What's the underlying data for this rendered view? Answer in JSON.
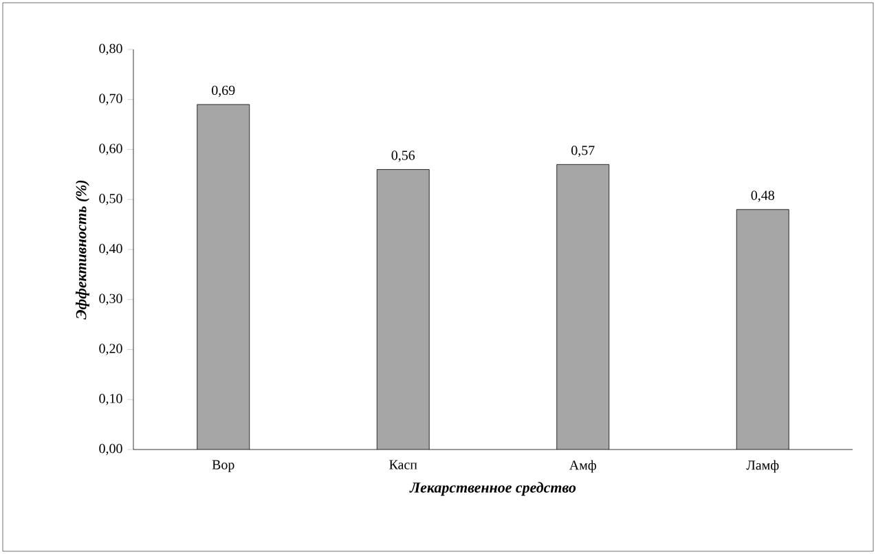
{
  "chart_data": {
    "type": "bar",
    "xlabel": "Лекарственное средство",
    "ylabel": "Эффективность (%)",
    "categories": [
      "Вор",
      "Касп",
      "Амф",
      "Ламф"
    ],
    "values": [
      0.69,
      0.56,
      0.57,
      0.48
    ],
    "value_labels": [
      "0,69",
      "0,56",
      "0,57",
      "0,48"
    ],
    "color": "#a6a6a6",
    "ylim": [
      0,
      0.8
    ],
    "yticks": [
      {
        "value": 0,
        "label": "0,00"
      },
      {
        "value": 0.1,
        "label": "0,10"
      },
      {
        "value": 0.2,
        "label": "0,20"
      },
      {
        "value": 0.3,
        "label": "0,30"
      },
      {
        "value": 0.4,
        "label": "0,40"
      },
      {
        "value": 0.5,
        "label": "0,50"
      },
      {
        "value": 0.6,
        "label": "0,60"
      },
      {
        "value": 0.7,
        "label": "0,70"
      },
      {
        "value": 0.8,
        "label": "0,80"
      }
    ],
    "grid": false
  }
}
